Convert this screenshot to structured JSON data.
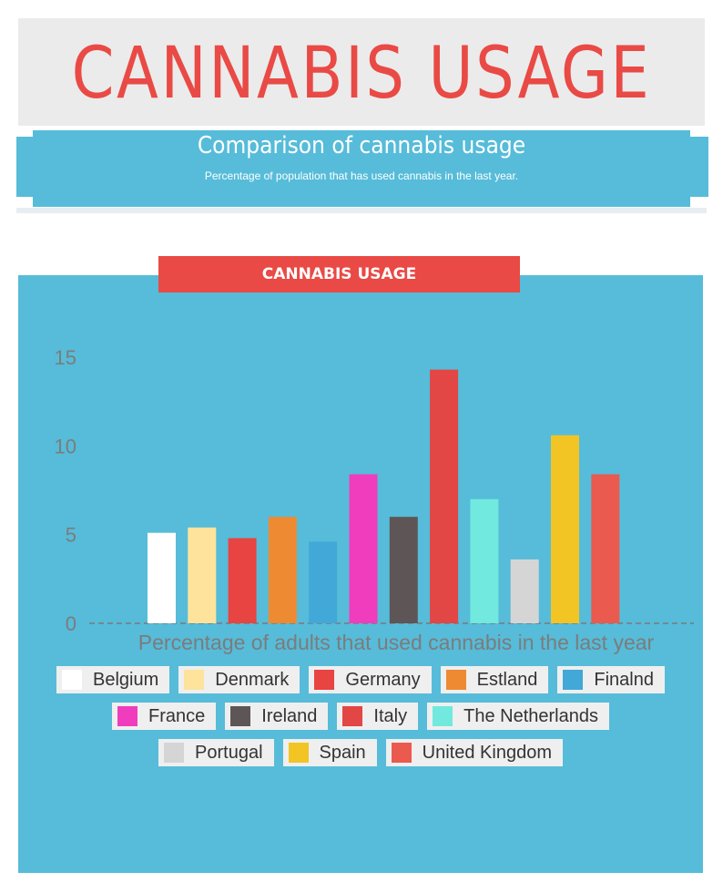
{
  "header": {
    "title": "CANNABIS USAGE",
    "subtitle": "Comparison of cannabis usage",
    "description": "Percentage of population that has used cannabis in the last year."
  },
  "panel": {
    "title": "CANNABIS USAGE"
  },
  "colors": {
    "accent_red": "#e94a45",
    "panel_blue": "#56bcd9",
    "title_bg": "#ebebeb"
  },
  "chart_data": {
    "type": "bar",
    "title": "CANNABIS USAGE",
    "xlabel": "Percentage of adults that used cannabis in the last year",
    "ylabel": "",
    "ylim": [
      0,
      16
    ],
    "yticks": [
      0,
      5,
      10,
      15
    ],
    "grid": false,
    "legend_position": "bottom",
    "series": [
      {
        "name": "Belgium",
        "value": 5.1,
        "color": "#ffffff"
      },
      {
        "name": "Denmark",
        "value": 5.4,
        "color": "#fde39b"
      },
      {
        "name": "Germany",
        "value": 4.8,
        "color": "#e84441"
      },
      {
        "name": "Estland",
        "value": 6.0,
        "color": "#ee8a31"
      },
      {
        "name": "Finalnd",
        "value": 4.6,
        "color": "#42a8d7"
      },
      {
        "name": "France",
        "value": 8.4,
        "color": "#ef3dbe"
      },
      {
        "name": "Ireland",
        "value": 6.0,
        "color": "#5e5556"
      },
      {
        "name": "Italy",
        "value": 14.3,
        "color": "#e24645"
      },
      {
        "name": "The Netherlands",
        "value": 7.0,
        "color": "#71e9de"
      },
      {
        "name": "Portugal",
        "value": 3.6,
        "color": "#d5d5d5"
      },
      {
        "name": "Spain",
        "value": 10.6,
        "color": "#f2c524"
      },
      {
        "name": "United Kingdom",
        "value": 8.4,
        "color": "#ea5a4f"
      }
    ]
  }
}
